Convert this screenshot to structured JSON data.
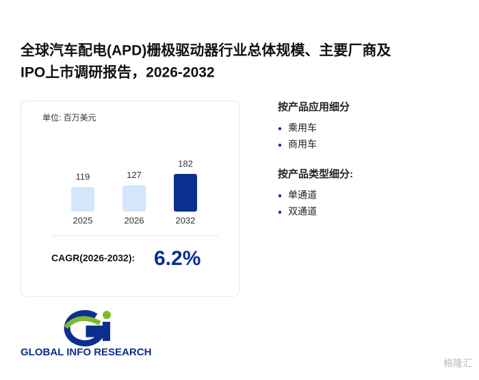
{
  "header": {
    "title_line1": "全球汽车配电(APD)栅极驱动器行业总体规模、主要厂商及",
    "title_line2": "IPO上市调研报告，2026-2032"
  },
  "chart_data": {
    "type": "bar",
    "unit": "单位: 百万美元",
    "categories": [
      "2025",
      "2026",
      "2032"
    ],
    "values": [
      119,
      127,
      182
    ],
    "colors": [
      "#d4e6fa",
      "#d4e6fa",
      "#0b2f8f"
    ]
  },
  "cagr": {
    "label": "CAGR(2026-2032):",
    "value": "6.2%"
  },
  "segments": [
    {
      "title": "按产品应用细分",
      "items": [
        "乘用车",
        "商用车"
      ]
    },
    {
      "title": "按产品类型细分:",
      "items": [
        "单通道",
        "双通道"
      ]
    }
  ],
  "logo": {
    "text": "GLOBAL INFO RESEARCH"
  },
  "watermark": "格隆汇"
}
